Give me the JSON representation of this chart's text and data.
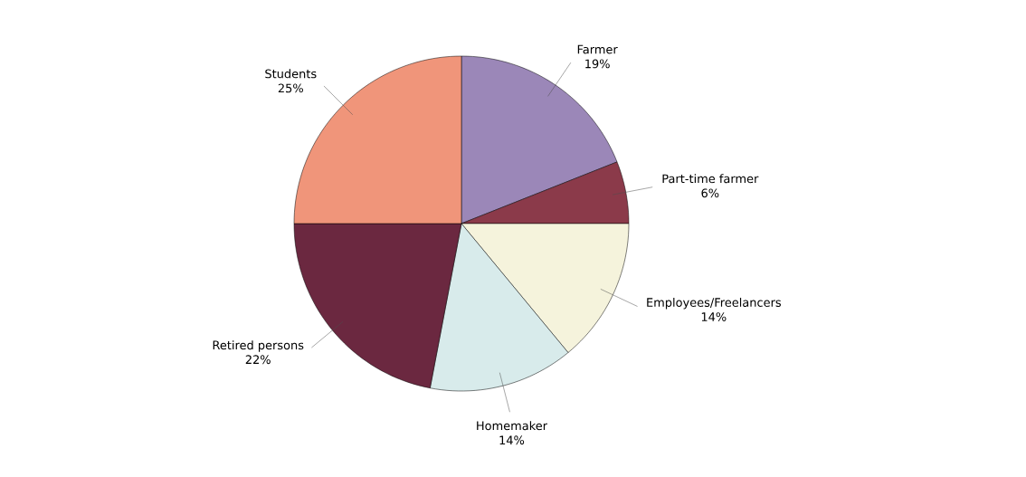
{
  "chart_data": {
    "type": "pie",
    "categories": [
      "Farmer",
      "Part-time farmer",
      "Employees/Freelancers",
      "Homemaker",
      "Retired persons",
      "Students"
    ],
    "values": [
      19,
      6,
      14,
      14,
      22,
      25
    ],
    "value_labels": [
      "19%",
      "6%",
      "14%",
      "14%",
      "22%",
      "25%"
    ],
    "colors": [
      "#9b87b8",
      "#8b3a4a",
      "#f5f3dc",
      "#d8ebeb",
      "#6b2840",
      "#f0957a"
    ]
  }
}
